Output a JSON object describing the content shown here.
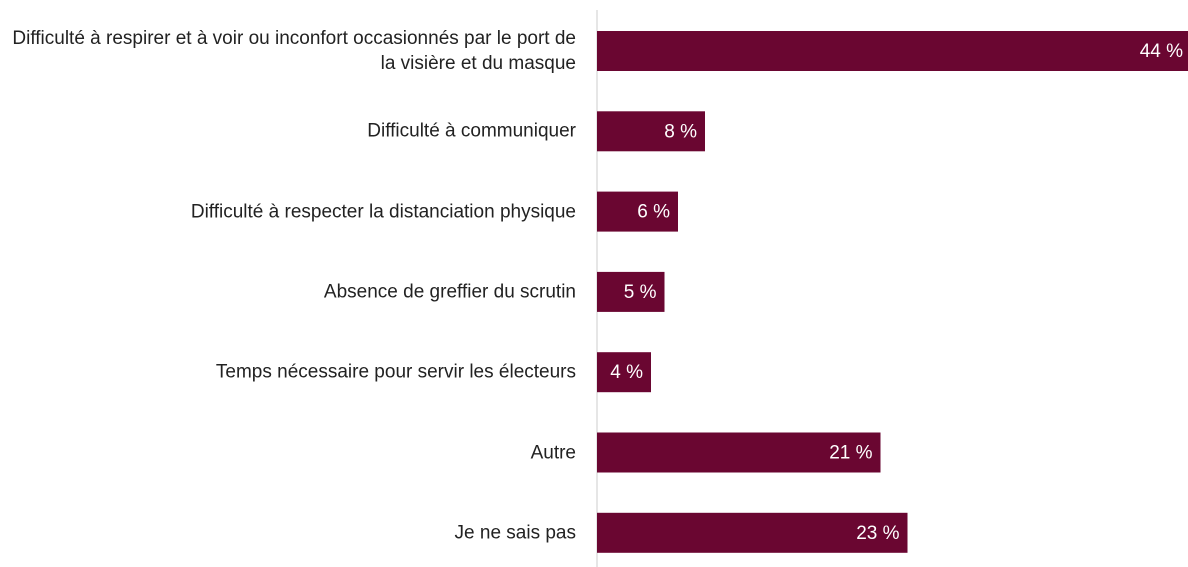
{
  "chart_data": {
    "type": "bar",
    "orientation": "horizontal",
    "categories": [
      "Difficulté à respirer et à voir ou inconfort occasionnés par le port de la visière et du masque",
      "Difficulté à communiquer",
      "Difficulté à respecter la distanciation physique",
      "Absence de greffier du scrutin",
      "Temps nécessaire pour servir les électeurs",
      "Autre",
      "Je ne sais pas"
    ],
    "values": [
      44,
      8,
      6,
      5,
      4,
      21,
      23
    ],
    "value_labels": [
      "44 %",
      "8 %",
      "6 %",
      "5 %",
      "4 %",
      "21 %",
      "23 %"
    ],
    "color": "#6a0631"
  }
}
